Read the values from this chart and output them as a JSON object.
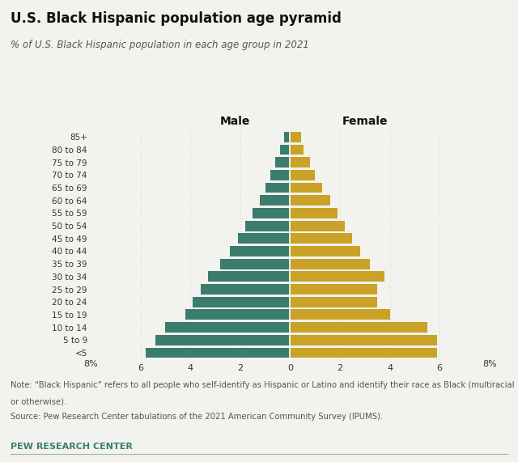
{
  "title": "U.S. Black Hispanic population age pyramid",
  "subtitle": "% of U.S. Black Hispanic population in each age group in 2021",
  "age_groups": [
    "<5",
    "5 to 9",
    "10 to 14",
    "15 to 19",
    "20 to 24",
    "25 to 29",
    "30 to 34",
    "35 to 39",
    "40 to 44",
    "45 to 49",
    "50 to 54",
    "55 to 59",
    "60 to 64",
    "65 to 69",
    "70 to 74",
    "75 to 79",
    "80 to 84",
    "85+"
  ],
  "male": [
    5.8,
    5.4,
    5.0,
    4.2,
    3.9,
    3.6,
    3.3,
    2.8,
    2.4,
    2.1,
    1.8,
    1.5,
    1.2,
    1.0,
    0.8,
    0.6,
    0.4,
    0.25
  ],
  "female": [
    5.9,
    5.9,
    5.5,
    4.0,
    3.5,
    3.5,
    3.8,
    3.2,
    2.8,
    2.5,
    2.2,
    1.9,
    1.6,
    1.3,
    1.0,
    0.8,
    0.55,
    0.45
  ],
  "male_color": "#3a7d6e",
  "female_color": "#c9a227",
  "background_color": "#f2f2ee",
  "xlim": 8,
  "xticks": [
    -6,
    -4,
    -2,
    0,
    2,
    4,
    6
  ],
  "xticklabels": [
    "6",
    "4",
    "2",
    "0",
    "2",
    "4",
    "6"
  ],
  "note1": "Note: “Black Hispanic” refers to all people who self-identify as Hispanic or Latino and identify their race as Black (multiracial",
  "note2": "or otherwise).",
  "note3": "Source: Pew Research Center tabulations of the 2021 American Community Survey (IPUMS).",
  "footer": "PEW RESEARCH CENTER",
  "grid_color": "#c8c8c8"
}
